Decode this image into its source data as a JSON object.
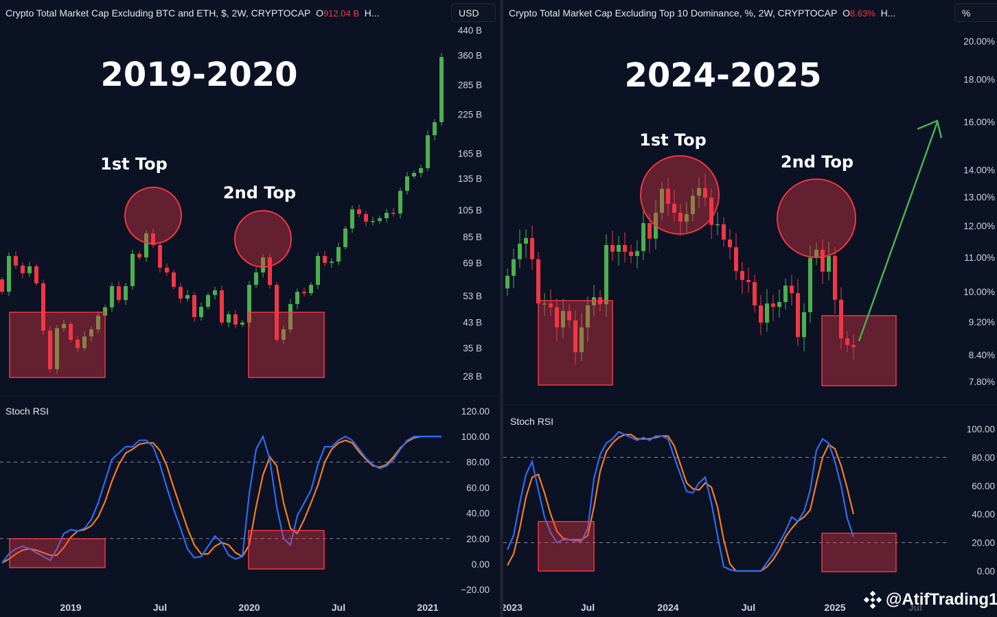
{
  "left": {
    "legend": {
      "title": "Crypto Total Market Cap Excluding BTC and ETH, $, 2W, CRYPTOCAP",
      "o_label": "O",
      "o_value": "912.04 B",
      "more": "H..."
    },
    "unit_button": "USD",
    "pane_label": "Stoch RSI",
    "headline": "2019-2020",
    "annotations": [
      "1st Top",
      "2nd Top"
    ]
  },
  "right": {
    "legend": {
      "title": "Crypto Total Market Cap Excluding Top 10 Dominance, %, 2W, CRYPTOCAP",
      "o_label": "O",
      "o_value": "8.63%",
      "more": "H..."
    },
    "unit_button": "%",
    "pane_label": "Stoch RSI",
    "headline": "2024-2025",
    "annotations": [
      "1st Top",
      "2nd Top"
    ]
  },
  "watermark": "@AtifTrading1",
  "colors": {
    "up": "#4caf50",
    "down": "#f23645",
    "k_line": "#2f6bf0",
    "d_line": "#f57c1f",
    "highlight": "#f23645",
    "arrow": "#4caf50",
    "background": "#0b1224"
  },
  "chart_data": [
    {
      "type": "candlestick",
      "title": "Crypto Total Market Cap Excluding BTC and ETH",
      "interval": "2W",
      "yscale": "log",
      "ylim": [
        28,
        440
      ],
      "y_unit": "B USD",
      "y_ticks": [
        440,
        360,
        285,
        225,
        165,
        135,
        105,
        85,
        69,
        53,
        43,
        35,
        28
      ],
      "y_tick_labels": [
        "440 B",
        "360 B",
        "285 B",
        "225 B",
        "165 B",
        "135 B",
        "105 B",
        "85 B",
        "69 B",
        "53 B",
        "43 B",
        "35 B",
        "28 B"
      ],
      "x_tick_labels": [
        {
          "label": "2019",
          "index": 10
        },
        {
          "label": "Jul",
          "index": 23
        },
        {
          "label": "2020",
          "index": 36
        },
        {
          "label": "Jul",
          "index": 49
        },
        {
          "label": "2021",
          "index": 62
        }
      ],
      "first_open": 60.5,
      "closes": [
        54.8,
        72.9,
        67.5,
        63.5,
        67.1,
        58.6,
        40.2,
        29.6,
        41.0,
        42.4,
        37.4,
        35.0,
        38.4,
        40.6,
        45.3,
        48.4,
        57.3,
        51.3,
        57.3,
        74.1,
        72.0,
        87.2,
        79.5,
        66.4,
        63.9,
        57.0,
        51.9,
        53.4,
        44.8,
        48.6,
        53.4,
        55.4,
        42.9,
        45.8,
        42.2,
        42.9,
        57.9,
        63.9,
        72.0,
        57.9,
        37.4,
        40.6,
        49.7,
        54.8,
        54.2,
        57.9,
        72.9,
        69.0,
        69.7,
        78.2,
        90.7,
        105.6,
        101.7,
        95.8,
        96.3,
        98.4,
        102.8,
        102.2,
        122.4,
        137.3,
        141.1,
        146.6,
        190.6,
        211.4,
        355.3
      ],
      "stoch_rsi": {
        "label": "Stoch RSI",
        "ylim": [
          -20,
          120
        ],
        "y_ticks": [
          120,
          100,
          80,
          60,
          40,
          20,
          0,
          -20
        ],
        "y_tick_labels": [
          "120.00",
          "100.00",
          "80.00",
          "60.00",
          "40.00",
          "20.00",
          "0.00",
          "−20.00"
        ],
        "bands": [
          80,
          20
        ],
        "k": [
          1,
          8,
          12,
          14,
          12,
          9,
          6,
          3,
          12,
          24,
          27,
          26,
          28,
          35,
          48,
          65,
          82,
          87,
          92,
          92,
          97,
          97,
          92,
          78,
          60,
          43,
          28,
          12,
          5,
          6,
          14,
          22,
          17,
          7,
          4,
          6,
          55,
          90,
          100,
          82,
          45,
          20,
          15,
          38,
          48,
          58,
          78,
          92,
          92,
          97,
          100,
          97,
          90,
          83,
          78,
          75,
          77,
          82,
          90,
          97,
          100,
          100,
          100,
          100,
          100
        ],
        "d": [
          1,
          4,
          8,
          11,
          12,
          11,
          9,
          7,
          7,
          13,
          21,
          26,
          27,
          30,
          37,
          49,
          65,
          78,
          87,
          90,
          94,
          95,
          95,
          89,
          77,
          60,
          44,
          28,
          15,
          8,
          8,
          14,
          17,
          15,
          9,
          6,
          15,
          45,
          70,
          84,
          77,
          48,
          28,
          24,
          35,
          48,
          62,
          80,
          90,
          95,
          97,
          95,
          88,
          82,
          77,
          76,
          78,
          84,
          91,
          96,
          99,
          100,
          100,
          100,
          100
        ]
      },
      "annotations": {
        "first_top_index": 22,
        "second_top_index": 38,
        "bottom_zones_index": [
          [
            1,
            15
          ],
          [
            36,
            46
          ]
        ]
      }
    },
    {
      "type": "candlestick",
      "title": "Crypto Total Market Cap Excluding Top 10 Dominance",
      "interval": "2W",
      "yscale": "log",
      "ylim": [
        7.8,
        20
      ],
      "y_unit": "%",
      "y_ticks": [
        20,
        18,
        16,
        14,
        13,
        12,
        11,
        10,
        9.2,
        8.4,
        7.8
      ],
      "y_tick_labels": [
        "20.00%",
        "18.00%",
        "16.00%",
        "14.00%",
        "13.00%",
        "12.00%",
        "11.00%",
        "10.00%",
        "9.20%",
        "8.40%",
        "7.80%"
      ],
      "x_tick_labels": [
        {
          "label": "2023",
          "index": 0.7
        },
        {
          "label": "Jul",
          "index": 13
        },
        {
          "label": "2024",
          "index": 26
        },
        {
          "label": "Jul",
          "index": 39
        },
        {
          "label": "2025",
          "index": 53
        },
        {
          "label": "Jul",
          "index": 66
        }
      ],
      "first_open": 10.09,
      "closes": [
        10.45,
        10.94,
        11.42,
        11.6,
        10.94,
        9.68,
        9.68,
        9.58,
        9.06,
        9.48,
        9.24,
        8.46,
        9.06,
        9.63,
        9.85,
        9.66,
        11.38,
        11.17,
        11.38,
        11.17,
        11.04,
        11.19,
        12.09,
        11.58,
        12.44,
        13.29,
        12.75,
        12.44,
        12.14,
        12.39,
        13.04,
        13.32,
        12.97,
        12.03,
        12.05,
        11.55,
        11.31,
        10.59,
        10.33,
        10.27,
        9.63,
        9.18,
        9.68,
        9.59,
        9.72,
        10.17,
        9.96,
        8.82,
        9.45,
        10.98,
        11.23,
        10.57,
        11.04,
        9.78,
        8.79,
        8.63,
        8.58
      ],
      "stoch_rsi": {
        "label": "Stoch RSI",
        "ylim": [
          -5,
          110
        ],
        "y_ticks": [
          100,
          80,
          60,
          40,
          20,
          0
        ],
        "y_tick_labels": [
          "100.00",
          "80.00",
          "60.00",
          "40.00",
          "20.00",
          "0.00"
        ],
        "bands": [
          80,
          20
        ],
        "k": [
          15,
          25,
          48,
          68,
          77,
          57,
          38,
          27,
          20,
          22,
          22,
          21,
          21,
          30,
          65,
          82,
          90,
          93,
          98,
          96,
          94,
          92,
          94,
          92,
          95,
          95,
          93,
          80,
          68,
          56,
          55,
          62,
          66,
          48,
          25,
          3,
          1,
          0,
          0,
          0,
          0,
          0,
          6,
          12,
          20,
          28,
          38,
          35,
          42,
          57,
          85,
          93,
          90,
          77,
          60,
          37,
          24
        ],
        "d": [
          4,
          12,
          30,
          52,
          66,
          68,
          55,
          40,
          28,
          23,
          22,
          22,
          22,
          25,
          45,
          70,
          84,
          90,
          94,
          96,
          96,
          93,
          93,
          93,
          94,
          95,
          95,
          88,
          75,
          62,
          58,
          57,
          62,
          59,
          45,
          22,
          5,
          0,
          0,
          0,
          0,
          0,
          3,
          8,
          15,
          24,
          30,
          35,
          38,
          43,
          62,
          80,
          89,
          86,
          74,
          58,
          40
        ]
      },
      "annotations": {
        "first_top_index": 27,
        "second_top_index": 50,
        "bottom_zones_index": [
          [
            5,
            16
          ],
          [
            51,
            62
          ]
        ],
        "projection": "up-arrow"
      }
    }
  ]
}
